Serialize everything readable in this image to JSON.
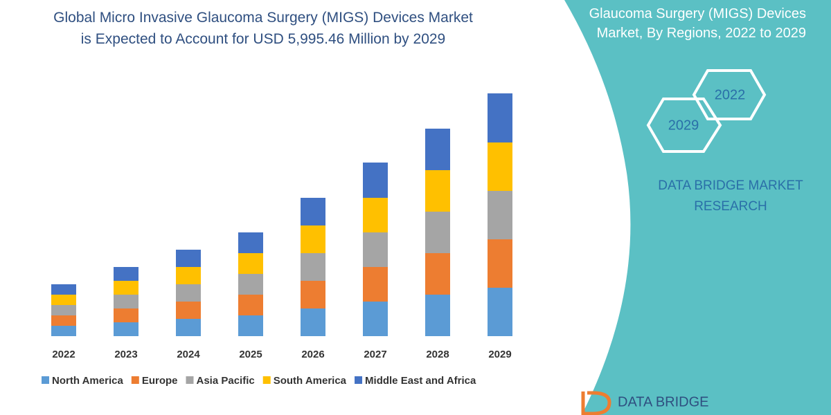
{
  "chart_data": {
    "type": "stacked-bar",
    "title": "Global Micro Invasive Glaucoma Surgery (MIGS) Devices Market is Expected to Account for  USD 5,995.46 Million by 2029",
    "categories": [
      "2022",
      "2023",
      "2024",
      "2025",
      "2026",
      "2027",
      "2028",
      "2029"
    ],
    "series": [
      {
        "name": "North America",
        "color": "#5b9bd5",
        "values": [
          15,
          20,
          25,
          30,
          40,
          50,
          60,
          70
        ]
      },
      {
        "name": "Europe",
        "color": "#ed7d31",
        "values": [
          15,
          20,
          25,
          30,
          40,
          50,
          60,
          70
        ]
      },
      {
        "name": "Asia Pacific",
        "color": "#a5a5a5",
        "values": [
          15,
          20,
          25,
          30,
          40,
          50,
          60,
          70
        ]
      },
      {
        "name": "South America",
        "color": "#ffc000",
        "values": [
          15,
          20,
          25,
          30,
          40,
          50,
          60,
          70
        ]
      },
      {
        "name": "Middle East and Africa",
        "color": "#4472c4",
        "values": [
          15,
          20,
          25,
          30,
          40,
          51,
          60,
          71
        ]
      }
    ],
    "legend": "bottom"
  },
  "sidebar": {
    "title": "Glaucoma Surgery (MIGS) Devices Market, By Regions, 2022 to 2029",
    "hexagons": [
      "2022",
      "2029"
    ],
    "brand": "DATA BRIDGE MARKET RESEARCH",
    "logo": "DATA BRIDGE"
  }
}
